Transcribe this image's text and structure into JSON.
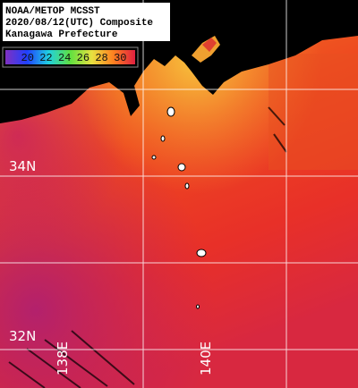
{
  "header": {
    "lines": [
      "NOAA/METOP MCSST",
      "2020/08/12(UTC) Composite",
      "Kanagawa Prefecture"
    ]
  },
  "colorbar": {
    "labels": [
      "20",
      "22",
      "24",
      "26",
      "28",
      "30"
    ],
    "colors": [
      "#2040ff",
      "#20d0e0",
      "#60e040",
      "#e8e040",
      "#ff8020",
      "#e02040"
    ],
    "start_color": "#8030c0"
  },
  "grid_labels": {
    "lat": [
      "34N",
      "32N"
    ],
    "lon": [
      "138E",
      "140E"
    ]
  }
}
